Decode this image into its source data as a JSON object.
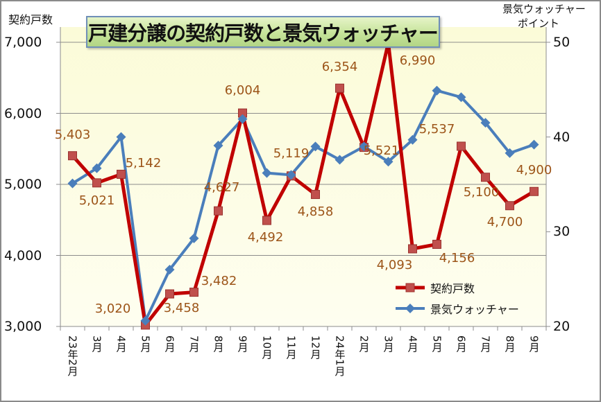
{
  "chart_data": {
    "type": "line",
    "title": "戸建分譲の契約戸数と景気ウォッチャー",
    "ylabel": "契約戸数",
    "y2label_line1": "景気ウォッチャー",
    "y2label_line2": "ポイント",
    "categories": [
      "23年2月",
      "3月",
      "4月",
      "5月",
      "6月",
      "7月",
      "8月",
      "9月",
      "10月",
      "11月",
      "12月",
      "24年1月",
      "2月",
      "3月",
      "4月",
      "5月",
      "6月",
      "7月",
      "8月",
      "9月"
    ],
    "ylim": [
      3000,
      7000
    ],
    "y2lim": [
      20,
      50
    ],
    "yticks": [
      "3,000",
      "4,000",
      "5,000",
      "6,000",
      "7,000"
    ],
    "y2ticks": [
      "20",
      "30",
      "40",
      "50"
    ],
    "series": [
      {
        "name": "契約戸数",
        "axis": "left",
        "color": "#c00000",
        "marker": "square",
        "values": [
          5403,
          5021,
          5142,
          3020,
          3458,
          3482,
          4627,
          6004,
          4492,
          5119,
          4858,
          6354,
          5521,
          6990,
          4093,
          4156,
          5537,
          5100,
          4700,
          4900
        ],
        "labels": [
          "5,403",
          "5,021",
          "5,142",
          "3,020",
          "3,458",
          "3,482",
          "4,627",
          "6,004",
          "4,492",
          "5,119",
          "4,858",
          "6,354",
          "5,521",
          "6,990",
          "4,093",
          "4,156",
          "5,537",
          "5,100",
          "4,700",
          "4,900"
        ]
      },
      {
        "name": "景気ウォッチャー",
        "axis": "right",
        "color": "#4a7ebb",
        "marker": "diamond",
        "values": [
          35.1,
          36.7,
          40.0,
          20.6,
          26.0,
          29.3,
          39.1,
          41.9,
          36.2,
          36.0,
          39.0,
          37.6,
          39.0,
          37.4,
          39.7,
          44.9,
          44.2,
          41.5,
          38.3,
          39.2
        ]
      }
    ],
    "grid": true,
    "legend": "bottom-right"
  }
}
